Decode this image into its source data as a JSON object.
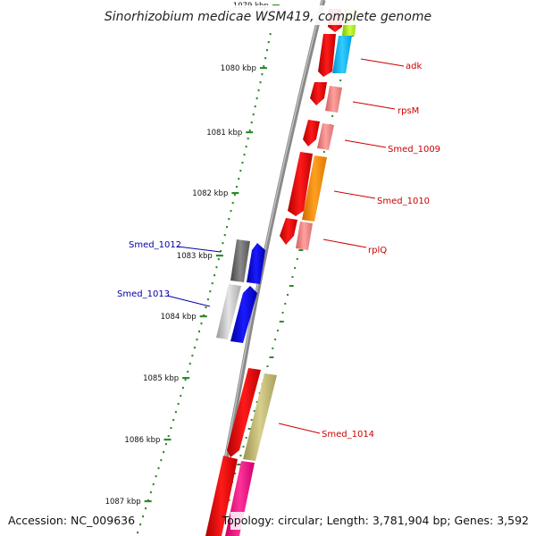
{
  "title": "Sinorhizobium medicae WSM419, complete genome",
  "footer": {
    "accession": "Accession: NC_009636",
    "topology": "Topology: circular; Length: 3,781,904 bp; Genes: 3,592"
  },
  "ticks": [
    {
      "label": "1079 kbp"
    },
    {
      "label": "1080 kbp"
    },
    {
      "label": "1081 kbp"
    },
    {
      "label": "1082 kbp"
    },
    {
      "label": "1083 kbp"
    },
    {
      "label": "1084 kbp"
    },
    {
      "label": "1085 kbp"
    },
    {
      "label": "1086 kbp"
    },
    {
      "label": "1087 kbp"
    }
  ],
  "gene_labels": [
    {
      "text": "adk",
      "color": "#cc0000"
    },
    {
      "text": "rpsM",
      "color": "#cc0000"
    },
    {
      "text": "Smed_1009",
      "color": "#cc0000"
    },
    {
      "text": "Smed_1010",
      "color": "#cc0000"
    },
    {
      "text": "rplQ",
      "color": "#cc0000"
    },
    {
      "text": "Smed_1012",
      "color": "#0000aa"
    },
    {
      "text": "Smed_1013",
      "color": "#0000aa"
    },
    {
      "text": "Smed_1014",
      "color": "#cc0000"
    }
  ],
  "colors": {
    "backbone": "#808080",
    "tick_dots": "#2e8b2e",
    "cds_red": "#ee0000",
    "cds_blue": "#0000ee"
  }
}
